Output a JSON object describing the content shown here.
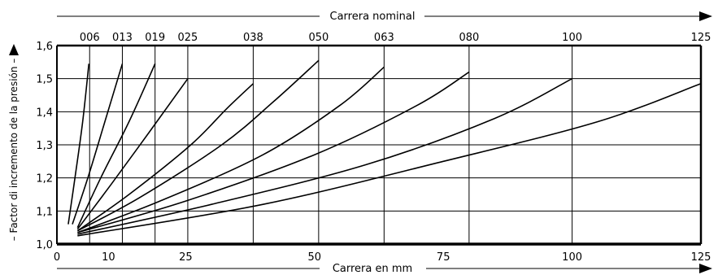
{
  "chart_data": {
    "type": "line",
    "title": "",
    "top_axis_title": "Carrera nominal",
    "xlabel": "Carrera en mm",
    "ylabel": "– Factor di incremento de la presión –",
    "xlim": [
      0,
      125
    ],
    "ylim": [
      1.0,
      1.6
    ],
    "x_ticks": [
      0,
      10,
      25,
      50,
      75,
      100,
      125
    ],
    "x_tick_labels": [
      "0",
      "10",
      "25",
      "50",
      "75",
      "100",
      "125"
    ],
    "y_ticks": [
      1.0,
      1.1,
      1.2,
      1.3,
      1.4,
      1.5,
      1.6
    ],
    "y_tick_labels": [
      "1,0",
      "1,1",
      "1,2",
      "1,3",
      "1,4",
      "1,5",
      "1,6"
    ],
    "grid": true,
    "top_ticks": [
      {
        "label": "006",
        "x": 6.35
      },
      {
        "label": "013",
        "x": 12.7
      },
      {
        "label": "019",
        "x": 19.05
      },
      {
        "label": "025",
        "x": 25.4
      },
      {
        "label": "038",
        "x": 38.1
      },
      {
        "label": "050",
        "x": 50.8
      },
      {
        "label": "063",
        "x": 63.5
      },
      {
        "label": "080",
        "x": 80.0
      },
      {
        "label": "100",
        "x": 100.0
      },
      {
        "label": "125",
        "x": 125.0
      }
    ],
    "series": [
      {
        "points": [
          [
            2.2,
            1.06
          ],
          [
            3.5,
            1.2
          ],
          [
            5.0,
            1.37
          ],
          [
            6.2,
            1.545
          ]
        ]
      },
      {
        "points": [
          [
            3.0,
            1.06
          ],
          [
            6.0,
            1.2
          ],
          [
            9.5,
            1.38
          ],
          [
            12.7,
            1.545
          ]
        ]
      },
      {
        "points": [
          [
            4.0,
            1.05
          ],
          [
            8.5,
            1.2
          ],
          [
            14.0,
            1.37
          ],
          [
            19.05,
            1.545
          ]
        ]
      },
      {
        "points": [
          [
            4.0,
            1.045
          ],
          [
            10.5,
            1.18
          ],
          [
            18.0,
            1.34
          ],
          [
            25.4,
            1.5
          ]
        ]
      },
      {
        "points": [
          [
            4.0,
            1.04
          ],
          [
            14.0,
            1.15
          ],
          [
            26.0,
            1.3
          ],
          [
            33.0,
            1.41
          ],
          [
            38.1,
            1.485
          ]
        ]
      },
      {
        "points": [
          [
            4.0,
            1.04
          ],
          [
            16.0,
            1.14
          ],
          [
            32.0,
            1.3
          ],
          [
            42.0,
            1.43
          ],
          [
            50.8,
            1.555
          ]
        ]
      },
      {
        "points": [
          [
            4.0,
            1.035
          ],
          [
            20.0,
            1.13
          ],
          [
            40.0,
            1.27
          ],
          [
            55.0,
            1.42
          ],
          [
            63.5,
            1.535
          ]
        ]
      },
      {
        "points": [
          [
            4.0,
            1.035
          ],
          [
            25.0,
            1.13
          ],
          [
            50.0,
            1.27
          ],
          [
            70.0,
            1.42
          ],
          [
            80.0,
            1.52
          ]
        ]
      },
      {
        "points": [
          [
            4.0,
            1.03
          ],
          [
            30.0,
            1.12
          ],
          [
            60.0,
            1.24
          ],
          [
            85.0,
            1.38
          ],
          [
            100.0,
            1.5
          ]
        ]
      },
      {
        "points": [
          [
            4.0,
            1.025
          ],
          [
            40.0,
            1.12
          ],
          [
            75.0,
            1.25
          ],
          [
            105.0,
            1.37
          ],
          [
            125.0,
            1.485
          ]
        ]
      }
    ]
  }
}
